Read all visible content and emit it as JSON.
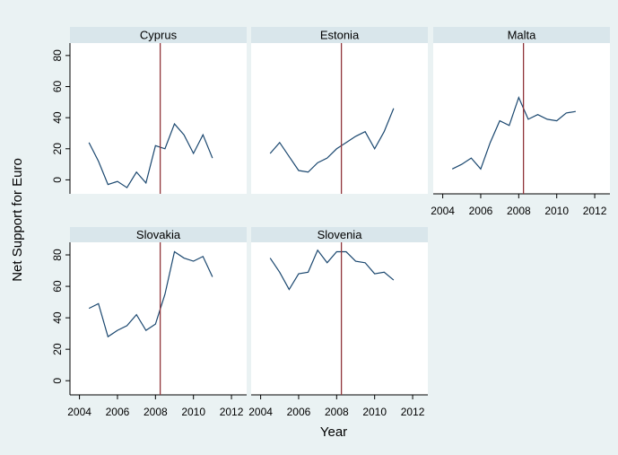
{
  "chart_data": [
    {
      "type": "line",
      "title": "Cyprus",
      "x": [
        2004.5,
        2005,
        2005.5,
        2006,
        2006.5,
        2007,
        2007.5,
        2008,
        2008.5,
        2009,
        2009.5,
        2010,
        2010.5,
        2011
      ],
      "values": [
        24,
        12,
        -3,
        -1,
        -5,
        5,
        -2,
        22,
        20,
        36,
        29,
        17,
        29,
        14
      ],
      "color": "#1a476f",
      "xlim": [
        2003.5,
        2012.8
      ],
      "ylim": [
        -9,
        88
      ],
      "yticks": [
        0,
        20,
        40,
        60,
        80
      ],
      "reference_x": 2008.25,
      "reference_color": "#90353b"
    },
    {
      "type": "line",
      "title": "Estonia",
      "x": [
        2004.5,
        2005,
        2005.5,
        2006,
        2006.5,
        2007,
        2007.5,
        2008,
        2008.5,
        2009,
        2009.5,
        2010,
        2010.5,
        2011
      ],
      "values": [
        17,
        24,
        15,
        6,
        5,
        11,
        14,
        20,
        24,
        28,
        31,
        20,
        31,
        46
      ],
      "color": "#1a476f",
      "xlim": [
        2003.5,
        2012.8
      ],
      "ylim": [
        -9,
        88
      ],
      "reference_x": 2008.25,
      "reference_color": "#90353b"
    },
    {
      "type": "line",
      "title": "Malta",
      "x": [
        2004.5,
        2005,
        2005.5,
        2006,
        2006.5,
        2007,
        2007.5,
        2008,
        2008.5,
        2009,
        2009.5,
        2010,
        2010.5,
        2011
      ],
      "values": [
        7,
        10,
        14,
        7,
        24,
        38,
        35,
        53,
        39,
        42,
        39,
        38,
        43,
        44
      ],
      "color": "#1a476f",
      "xlim": [
        2003.5,
        2012.8
      ],
      "ylim": [
        -9,
        88
      ],
      "xticks": [
        2004,
        2006,
        2008,
        2010,
        2012
      ],
      "reference_x": 2008.25,
      "reference_color": "#90353b"
    },
    {
      "type": "line",
      "title": "Slovakia",
      "x": [
        2004.5,
        2005,
        2005.5,
        2006,
        2006.5,
        2007,
        2007.5,
        2008,
        2008.5,
        2009,
        2009.5,
        2010,
        2010.5,
        2011
      ],
      "values": [
        46,
        49,
        28,
        32,
        35,
        42,
        32,
        36,
        55,
        82,
        78,
        76,
        79,
        66
      ],
      "color": "#1a476f",
      "xlim": [
        2003.5,
        2012.8
      ],
      "ylim": [
        -9,
        88
      ],
      "yticks": [
        0,
        20,
        40,
        60,
        80
      ],
      "xticks": [
        2004,
        2006,
        2008,
        2010,
        2012
      ],
      "reference_x": 2008.25,
      "reference_color": "#90353b"
    },
    {
      "type": "line",
      "title": "Slovenia",
      "x": [
        2004.5,
        2005,
        2005.5,
        2006,
        2006.5,
        2007,
        2007.5,
        2008,
        2008.5,
        2009,
        2009.5,
        2010,
        2010.5,
        2011
      ],
      "values": [
        78,
        69,
        58,
        68,
        69,
        83,
        75,
        82,
        82,
        76,
        75,
        68,
        69,
        64
      ],
      "color": "#1a476f",
      "xlim": [
        2003.5,
        2012.8
      ],
      "ylim": [
        -9,
        88
      ],
      "xticks": [
        2004,
        2006,
        2008,
        2010,
        2012
      ],
      "reference_x": 2008.25,
      "reference_color": "#90353b"
    }
  ],
  "y_axis_label": "Net Support for Euro",
  "x_axis_label": "Year"
}
